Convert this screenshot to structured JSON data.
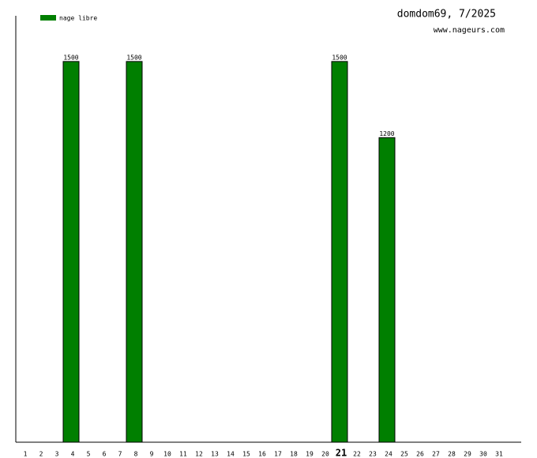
{
  "chart_data": {
    "type": "bar",
    "title": "domdom69, 7/2025",
    "subtitle": "www.nageurs.com",
    "categories": [
      "1",
      "2",
      "3",
      "4",
      "5",
      "6",
      "7",
      "8",
      "9",
      "10",
      "11",
      "12",
      "13",
      "14",
      "15",
      "16",
      "17",
      "18",
      "19",
      "20",
      "21",
      "22",
      "23",
      "24",
      "25",
      "26",
      "27",
      "28",
      "29",
      "30",
      "31"
    ],
    "series": [
      {
        "name": "nage libre",
        "color": "#007f00",
        "values": [
          null,
          null,
          null,
          1500,
          null,
          null,
          null,
          1500,
          null,
          null,
          null,
          null,
          null,
          null,
          null,
          null,
          null,
          null,
          null,
          null,
          1500,
          null,
          null,
          1200,
          null,
          null,
          null,
          null,
          null,
          null,
          null
        ]
      }
    ],
    "ylim": [
      0,
      1680
    ],
    "highlight_category": 20
  }
}
